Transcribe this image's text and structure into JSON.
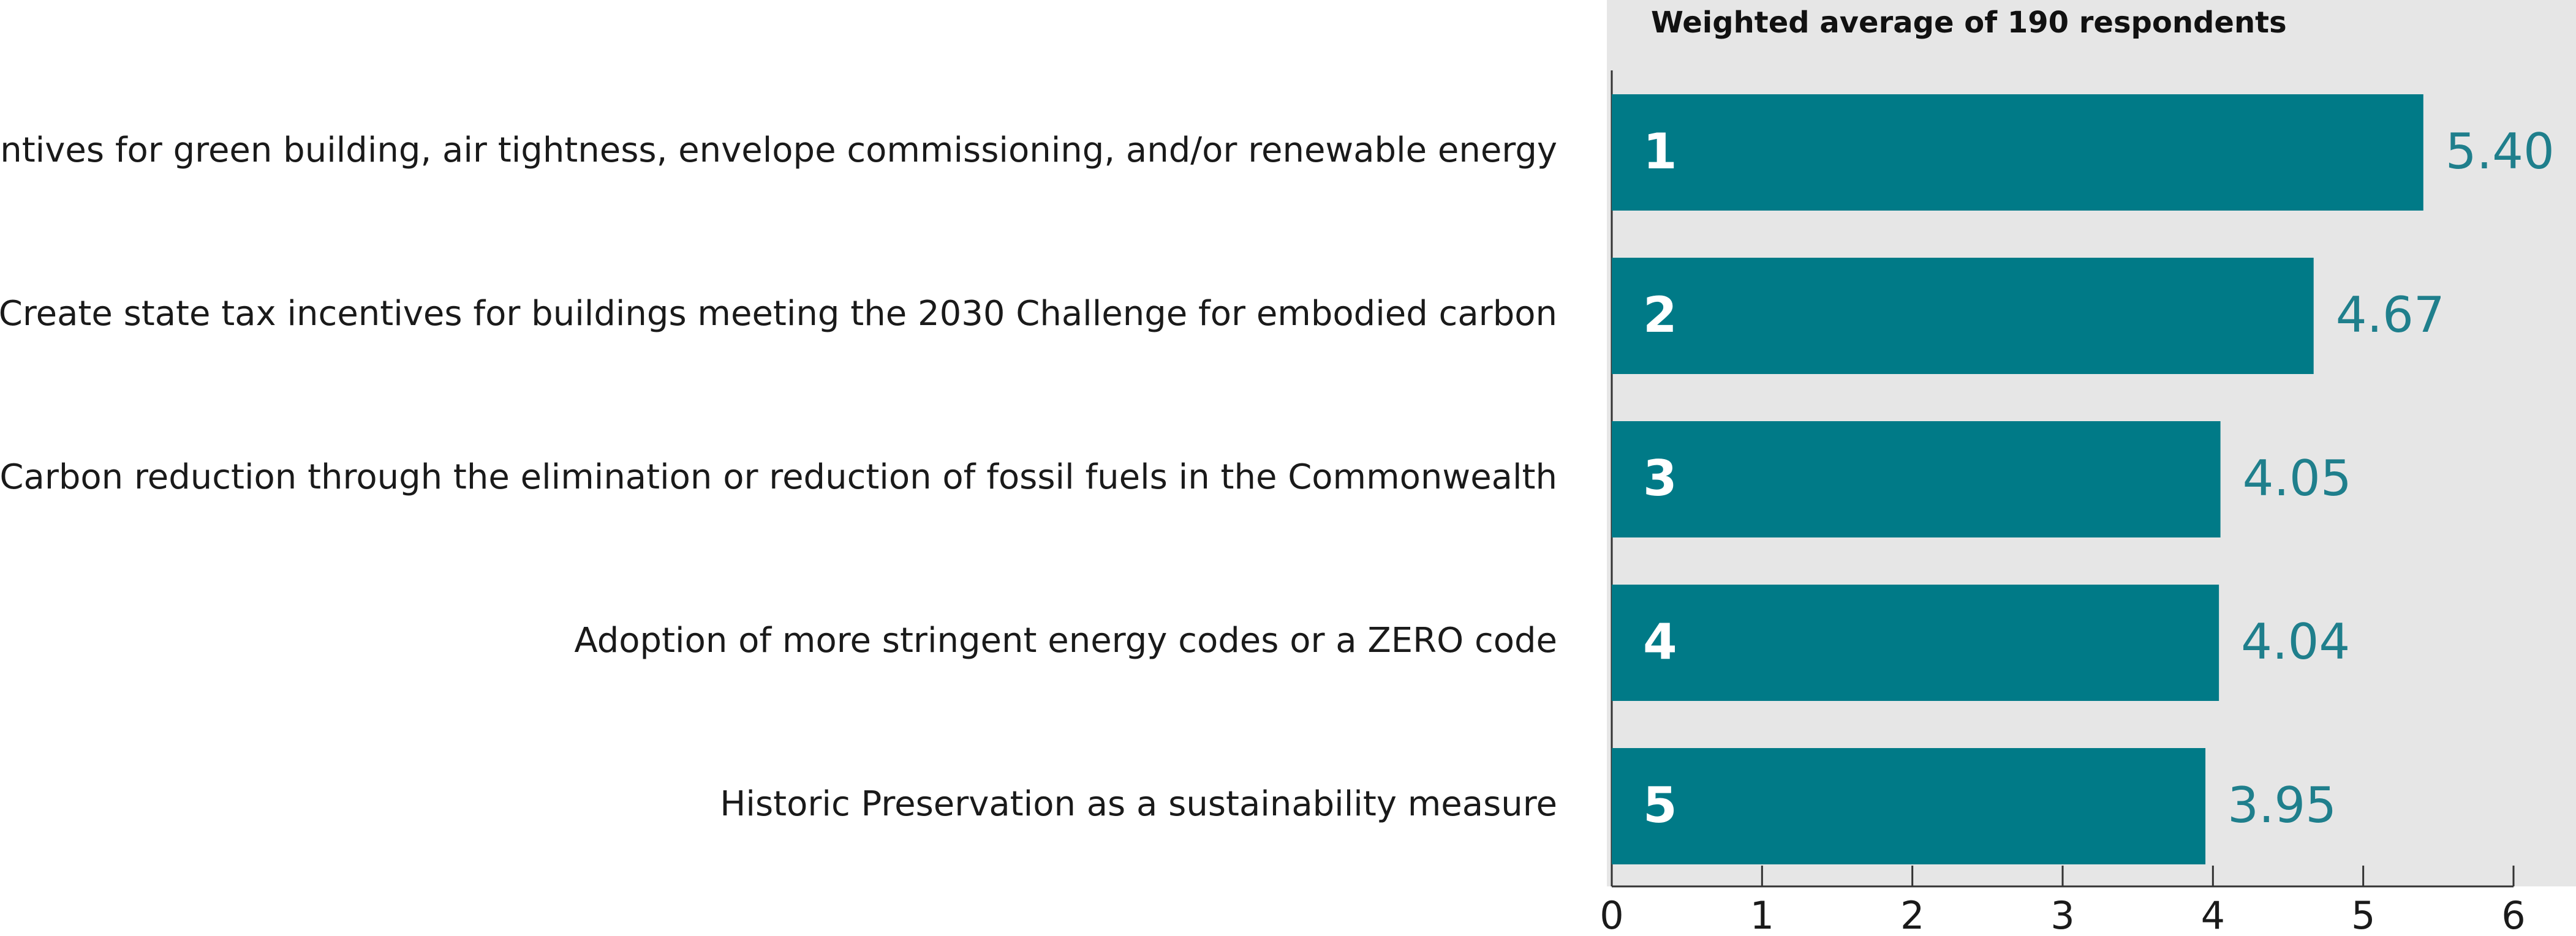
{
  "chart_data": {
    "type": "hbar",
    "subtitle": "Weighted average of 190 respondents",
    "categories": [
      "Incentives for green building, air tightness, envelope commissioning, and/or renewable energy",
      "Create state tax incentives for buildings meeting the 2030 Challenge for embodied carbon",
      "Carbon reduction through the elimination or reduction of fossil fuels in the Commonwealth",
      "Adoption of more stringent energy codes or a ZERO code",
      "Historic Preservation as a sustainability measure"
    ],
    "ranks": [
      1,
      2,
      3,
      4,
      5
    ],
    "values": [
      5.4,
      4.67,
      4.05,
      4.04,
      3.95
    ],
    "value_labels": [
      "5.40",
      "4.67",
      "4.05",
      "4.04",
      "3.95"
    ],
    "color": "#007a87",
    "xlim": [
      0,
      6
    ],
    "xticks": [
      0,
      1,
      2,
      3,
      4,
      5,
      6
    ]
  }
}
